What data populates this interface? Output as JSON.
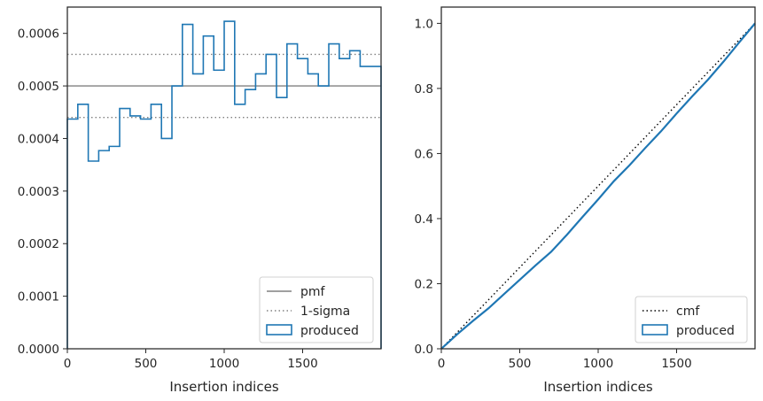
{
  "chart_data": [
    {
      "type": "step",
      "xlabel": "Insertion indices",
      "ylabel": "",
      "xlim": [
        0,
        2000
      ],
      "ylim": [
        0,
        0.00065
      ],
      "grid": false,
      "legend_position": "bottom-right",
      "x_ticks": [
        0,
        500,
        1000,
        1500
      ],
      "x_tick_labels": [
        "0",
        "500",
        "1000",
        "1500"
      ],
      "y_ticks": [
        0,
        0.0001,
        0.0002,
        0.0003,
        0.0004,
        0.0005,
        0.0006
      ],
      "y_tick_labels": [
        "0.0000",
        "0.0001",
        "0.0002",
        "0.0003",
        "0.0004",
        "0.0005",
        "0.0006"
      ],
      "series": [
        {
          "name": "pmf",
          "style": "solid",
          "color": "#808080",
          "y": 0.0005
        },
        {
          "name": "1-sigma",
          "style": "dotted",
          "color": "#808080",
          "y": [
            0.00044,
            0.00056
          ]
        },
        {
          "name": "produced",
          "style": "step",
          "color": "#1f77b4",
          "bin_width": 66.67,
          "values": [
            0.000437,
            0.000465,
            0.000357,
            0.000377,
            0.000385,
            0.000457,
            0.000443,
            0.000437,
            0.000465,
            0.0004,
            0.0005,
            0.000617,
            0.000523,
            0.000595,
            0.00053,
            0.000623,
            0.000465,
            0.000493,
            0.000523,
            0.00056,
            0.000478,
            0.00058,
            0.000552,
            0.000523,
            0.0005,
            0.00058,
            0.000552,
            0.000567,
            0.000537,
            0.000537
          ]
        }
      ]
    },
    {
      "type": "line",
      "xlabel": "Insertion indices",
      "ylabel": "",
      "xlim": [
        0,
        2000
      ],
      "ylim": [
        0,
        1.05
      ],
      "grid": false,
      "legend_position": "bottom-right",
      "x_ticks": [
        0,
        500,
        1000,
        1500
      ],
      "x_tick_labels": [
        "0",
        "500",
        "1000",
        "1500"
      ],
      "y_ticks": [
        0,
        0.2,
        0.4,
        0.6,
        0.8,
        1.0
      ],
      "y_tick_labels": [
        "0.0",
        "0.2",
        "0.4",
        "0.6",
        "0.8",
        "1.0"
      ],
      "series": [
        {
          "name": "cmf",
          "style": "dotted",
          "color": "#000000",
          "x": [
            0,
            2000
          ],
          "y": [
            0,
            1.0
          ]
        },
        {
          "name": "produced",
          "style": "step",
          "color": "#1f77b4",
          "x": [
            0,
            100,
            200,
            300,
            400,
            500,
            600,
            700,
            800,
            900,
            1000,
            1100,
            1200,
            1300,
            1400,
            1500,
            1600,
            1700,
            1800,
            1900,
            2000
          ],
          "y": [
            0,
            0.044,
            0.085,
            0.124,
            0.168,
            0.212,
            0.256,
            0.298,
            0.35,
            0.405,
            0.459,
            0.515,
            0.564,
            0.617,
            0.668,
            0.723,
            0.776,
            0.827,
            0.883,
            0.942,
            1.0
          ]
        }
      ]
    }
  ]
}
